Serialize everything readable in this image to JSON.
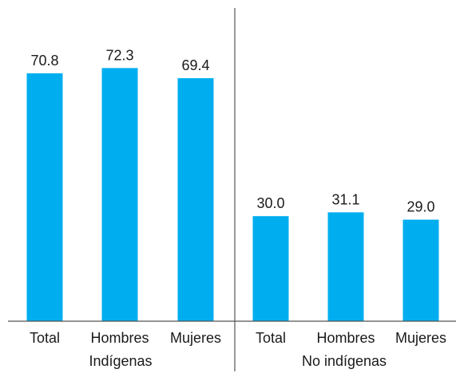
{
  "chart_data": {
    "type": "bar",
    "title": "",
    "xlabel": "",
    "ylabel": "",
    "ylim": [
      0,
      80
    ],
    "grid": false,
    "legend": "none",
    "bar_color": "#00AEEF",
    "groups": [
      {
        "name": "Indígenas",
        "categories": [
          "Total",
          "Hombres",
          "Mujeres"
        ],
        "values": [
          70.8,
          72.3,
          69.4
        ],
        "value_labels": [
          "70.8",
          "72.3",
          "69.4"
        ]
      },
      {
        "name": "No indígenas",
        "categories": [
          "Total",
          "Hombres",
          "Mujeres"
        ],
        "values": [
          30.0,
          31.1,
          29.0
        ],
        "value_labels": [
          "30.0",
          "31.1",
          "29.0"
        ]
      }
    ]
  }
}
